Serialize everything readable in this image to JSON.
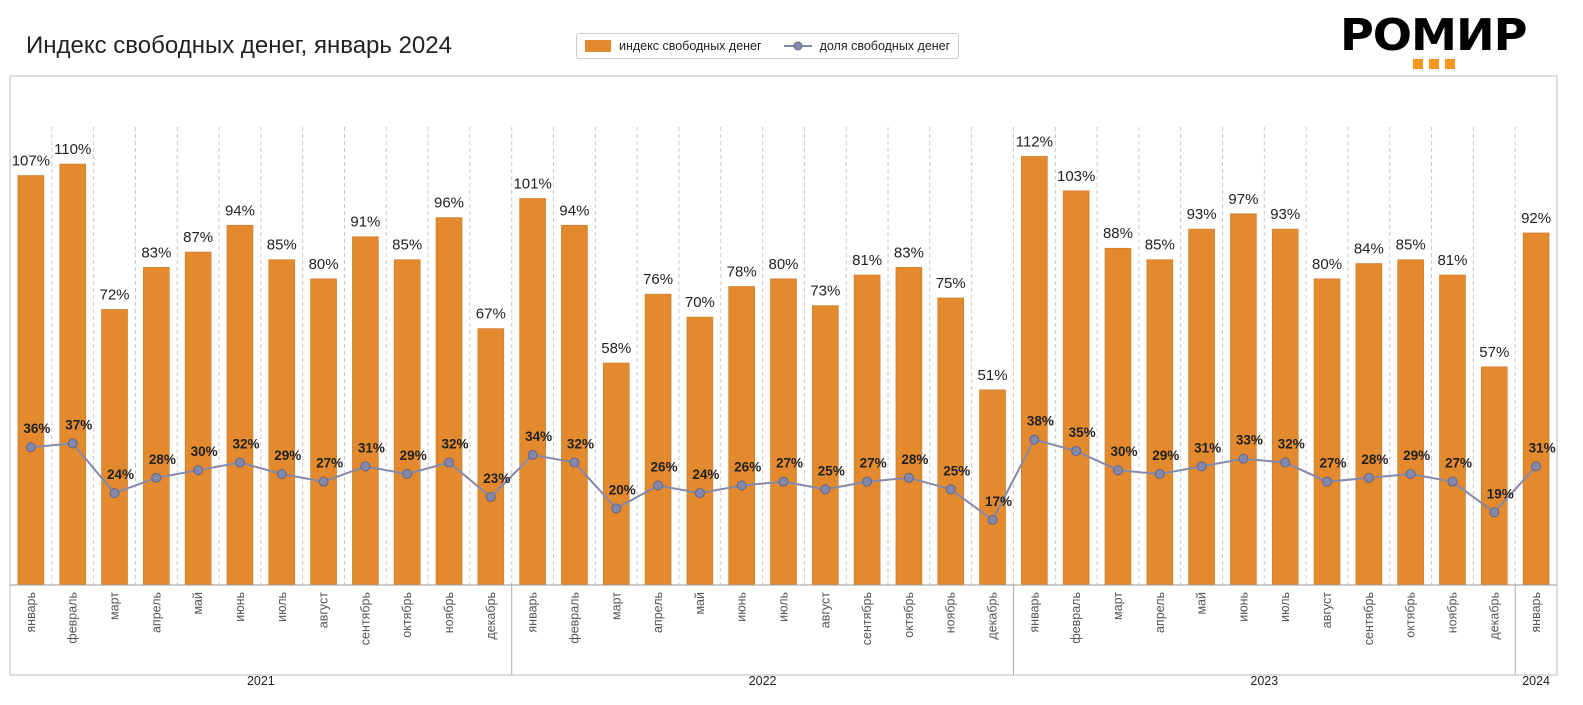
{
  "title": "Индекс свободных денег, январь 2024",
  "logo": "РОМИР",
  "chart_data": {
    "type": "bar+line",
    "title": "Индекс свободных денег, январь 2024",
    "legend_position": "top-center",
    "years": [
      {
        "label": "2021",
        "count": 12
      },
      {
        "label": "2022",
        "count": 12
      },
      {
        "label": "2023",
        "count": 12
      },
      {
        "label": "2024",
        "count": 1
      }
    ],
    "categories": [
      "январь",
      "февраль",
      "март",
      "апрель",
      "май",
      "июнь",
      "июль",
      "август",
      "сентябрь",
      "октябрь",
      "ноябрь",
      "декабрь",
      "январь",
      "февраль",
      "март",
      "апрель",
      "май",
      "июнь",
      "июль",
      "август",
      "сентябрь",
      "октябрь",
      "ноябрь",
      "декабрь",
      "январь",
      "февраль",
      "март",
      "апрель",
      "май",
      "июнь",
      "июль",
      "август",
      "сентябрь",
      "октябрь",
      "ноябрь",
      "декабрь",
      "январь"
    ],
    "series": [
      {
        "name": "индекс свободных денег",
        "type": "bar",
        "color": "#E38A2E",
        "values": [
          107,
          110,
          72,
          83,
          87,
          94,
          85,
          80,
          91,
          85,
          96,
          67,
          101,
          94,
          58,
          76,
          70,
          78,
          80,
          73,
          81,
          83,
          75,
          51,
          112,
          103,
          88,
          85,
          93,
          97,
          93,
          80,
          84,
          85,
          81,
          57,
          92
        ]
      },
      {
        "name": "доля свободных денег",
        "type": "line",
        "color": "#8489AB",
        "values": [
          36,
          37,
          24,
          28,
          30,
          32,
          29,
          27,
          31,
          29,
          32,
          23,
          34,
          32,
          20,
          26,
          24,
          26,
          27,
          25,
          27,
          28,
          25,
          17,
          38,
          35,
          30,
          29,
          31,
          33,
          32,
          27,
          28,
          29,
          27,
          19,
          31
        ]
      }
    ],
    "unit": "%",
    "ylim": [
      0,
      133
    ],
    "grid": "vertical dashed"
  }
}
